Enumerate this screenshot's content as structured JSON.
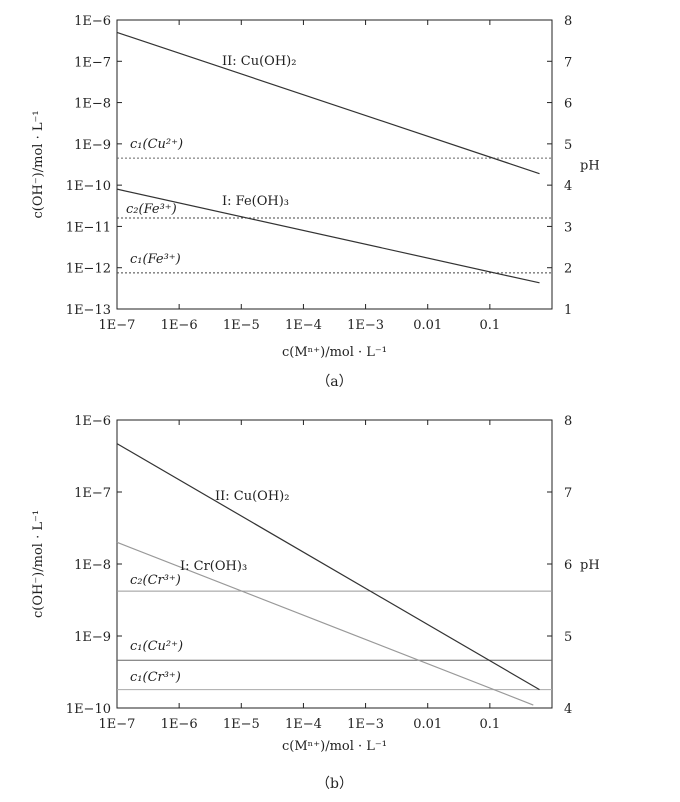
{
  "chart_data": [
    {
      "type": "line",
      "caption": "（a）",
      "xlabel": "c(Mⁿ⁺)/mol · L⁻¹",
      "ylabel": "c(OH⁻)/mol · L⁻¹",
      "y2label": "pH",
      "x_scale": "log",
      "y_scale": "log",
      "xlim": [
        1e-07,
        1
      ],
      "ylim": [
        1e-13,
        1e-06
      ],
      "y2lim": [
        1,
        8
      ],
      "x_ticks": [
        "1E−7",
        "1E−6",
        "1E−5",
        "1E−4",
        "1E−3",
        "0.01",
        "0.1"
      ],
      "y_ticks": [
        "1E−13",
        "1E−12",
        "1E−11",
        "1E−10",
        "1E−9",
        "1E−8",
        "1E−7",
        "1E−6"
      ],
      "y2_ticks": [
        "1",
        "2",
        "3",
        "4",
        "5",
        "6",
        "7",
        "8"
      ],
      "series": [
        {
          "name": "II: Cu(OH)₂",
          "style": "solid",
          "color": "#333333",
          "x": [
            1e-07,
            0.63
          ],
          "y": [
            5e-07,
            1.9e-10
          ]
        },
        {
          "name": "I: Fe(OH)₃",
          "style": "solid",
          "color": "#333333",
          "x": [
            1e-07,
            0.63
          ],
          "y": [
            8e-11,
            4.3e-13
          ]
        }
      ],
      "hlines": [
        {
          "name": "c₁(Cu²⁺)",
          "y": 4.5e-10,
          "style": "dotted",
          "color": "#666666"
        },
        {
          "name": "c₂(Fe³⁺)",
          "y": 1.6e-11,
          "style": "dotted",
          "color": "#444444"
        },
        {
          "name": "c₁(Fe³⁺)",
          "y": 7.5e-13,
          "style": "dotted",
          "color": "#444444"
        }
      ]
    },
    {
      "type": "line",
      "caption": "（b）",
      "xlabel": "c(Mⁿ⁺)/mol · L⁻¹",
      "ylabel": "c(OH⁻)/mol · L⁻¹",
      "y2label": "pH",
      "x_scale": "log",
      "y_scale": "log",
      "xlim": [
        1e-07,
        1
      ],
      "ylim": [
        1e-10,
        1e-06
      ],
      "y2lim": [
        4,
        8
      ],
      "x_ticks": [
        "1E−7",
        "1E−6",
        "1E−5",
        "1E−4",
        "1E−3",
        "0.01",
        "0.1"
      ],
      "y_ticks": [
        "1E−10",
        "1E−9",
        "1E−8",
        "1E−7",
        "1E−6"
      ],
      "y2_ticks": [
        "4",
        "5",
        "6",
        "7",
        "8"
      ],
      "series": [
        {
          "name": "II: Cu(OH)₂",
          "style": "solid",
          "color": "#333333",
          "x": [
            1e-07,
            0.63
          ],
          "y": [
            4.7e-07,
            1.8e-10
          ]
        },
        {
          "name": "I: Cr(OH)₃",
          "style": "solid",
          "color": "#999999",
          "x": [
            1e-07,
            0.5
          ],
          "y": [
            2e-08,
            1.1e-10
          ]
        }
      ],
      "hlines": [
        {
          "name": "c₂(Cr³⁺)",
          "y": 4.2e-09,
          "style": "solid",
          "color": "#999999"
        },
        {
          "name": "c₁(Cu²⁺)",
          "y": 4.6e-10,
          "style": "solid",
          "color": "#666666"
        },
        {
          "name": "c₁(Cr³⁺)",
          "y": 1.8e-10,
          "style": "solid",
          "color": "#aaaaaa"
        }
      ]
    }
  ]
}
